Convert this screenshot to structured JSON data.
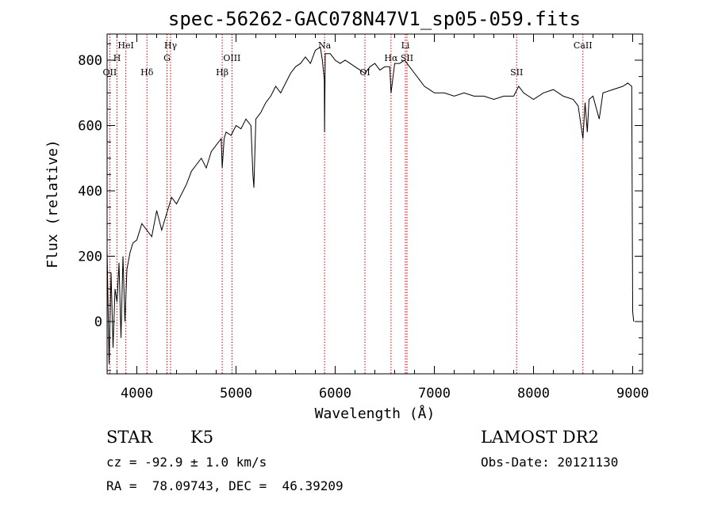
{
  "chart_data": {
    "type": "line",
    "title": "spec-56262-GAC078N47V1_sp05-059.fits",
    "xlabel": "Wavelength (Å)",
    "ylabel": "Flux (relative)",
    "xlim": [
      3700,
      9100
    ],
    "ylim": [
      -160,
      880
    ],
    "x_ticks": [
      4000,
      5000,
      6000,
      7000,
      8000,
      9000
    ],
    "y_ticks": [
      0,
      200,
      400,
      600,
      800
    ],
    "grid": false,
    "series": [
      {
        "x": [
          3700,
          3720,
          3740,
          3760,
          3780,
          3800,
          3820,
          3840,
          3860,
          3880,
          3900,
          3930,
          3960,
          4000,
          4050,
          4100,
          4150,
          4200,
          4250,
          4300,
          4350,
          4400,
          4450,
          4500,
          4550,
          4600,
          4650,
          4700,
          4750,
          4800,
          4850,
          4861,
          4880,
          4900,
          4950,
          5000,
          5050,
          5100,
          5150,
          5170,
          5180,
          5200,
          5250,
          5300,
          5350,
          5400,
          5450,
          5500,
          5550,
          5600,
          5650,
          5700,
          5750,
          5800,
          5850,
          5870,
          5890,
          5893,
          5900,
          5950,
          6000,
          6050,
          6100,
          6150,
          6200,
          6250,
          6300,
          6350,
          6400,
          6450,
          6500,
          6550,
          6563,
          6600,
          6650,
          6700,
          6750,
          6800,
          6850,
          6900,
          6950,
          7000,
          7100,
          7200,
          7300,
          7400,
          7500,
          7600,
          7700,
          7800,
          7850,
          7900,
          8000,
          8100,
          8200,
          8300,
          8400,
          8450,
          8498,
          8520,
          8542,
          8560,
          8600,
          8662,
          8700,
          8800,
          8900,
          8950,
          8990,
          9000,
          9010
        ],
        "y": [
          220,
          -130,
          150,
          -80,
          100,
          60,
          180,
          -50,
          200,
          0,
          160,
          210,
          240,
          250,
          300,
          280,
          260,
          340,
          280,
          330,
          380,
          360,
          390,
          420,
          460,
          480,
          500,
          470,
          520,
          540,
          560,
          470,
          560,
          580,
          570,
          600,
          590,
          620,
          600,
          450,
          410,
          620,
          640,
          670,
          690,
          720,
          700,
          730,
          760,
          780,
          790,
          810,
          790,
          830,
          840,
          800,
          740,
          580,
          820,
          820,
          800,
          790,
          800,
          790,
          780,
          770,
          760,
          780,
          790,
          770,
          780,
          780,
          700,
          790,
          790,
          800,
          780,
          760,
          740,
          720,
          710,
          700,
          700,
          690,
          700,
          690,
          690,
          680,
          690,
          690,
          720,
          700,
          680,
          700,
          710,
          690,
          680,
          660,
          560,
          670,
          580,
          680,
          690,
          620,
          700,
          710,
          720,
          730,
          720,
          30,
          0
        ]
      }
    ],
    "line_markers": [
      {
        "label": "OII",
        "x": 3727,
        "row": 3
      },
      {
        "label": "H",
        "x": 3800,
        "row": 2
      },
      {
        "label": "HeI",
        "x": 3889,
        "row": 1
      },
      {
        "label": "Hδ",
        "x": 4102,
        "row": 3
      },
      {
        "label": "Hγ",
        "x": 4340,
        "row": 1
      },
      {
        "label": "G",
        "x": 4304,
        "row": 2
      },
      {
        "label": "Hβ",
        "x": 4861,
        "row": 3
      },
      {
        "label": "OIII",
        "x": 4959,
        "row": 2
      },
      {
        "label": "Na",
        "x": 5893,
        "row": 1
      },
      {
        "label": "OI",
        "x": 6300,
        "row": 3
      },
      {
        "label": "Hα",
        "x": 6563,
        "row": 2
      },
      {
        "label": "Li",
        "x": 6708,
        "row": 1
      },
      {
        "label": "SII",
        "x": 6724,
        "row": 2
      },
      {
        "label": "SII",
        "x": 7830,
        "row": 3
      },
      {
        "label": "CaII",
        "x": 8498,
        "row": 1
      }
    ]
  },
  "footer": {
    "object_class": "STAR",
    "subclass": "K5",
    "survey": "LAMOST DR2",
    "redshift": "cz = -92.9 ± 1.0 km/s",
    "obs_date": "Obs-Date: 20121130",
    "coords": "RA =  78.09743, DEC =  46.39209"
  },
  "colors": {
    "marker": "#cc0000",
    "line": "#000000",
    "background": "#ffffff"
  }
}
